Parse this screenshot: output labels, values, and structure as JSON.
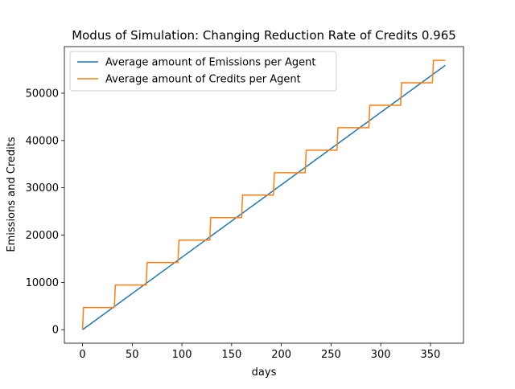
{
  "chart_data": {
    "type": "line",
    "title": "Modus of Simulation: Changing Reduction Rate of Credits 0.965",
    "xlabel": "days",
    "ylabel": "Emissions and Credits",
    "xlim": [
      -18.25,
      383.25
    ],
    "ylim": [
      -2850,
      59850
    ],
    "x_ticks": [
      0,
      50,
      100,
      150,
      200,
      250,
      300,
      350
    ],
    "y_ticks": [
      0,
      10000,
      20000,
      30000,
      40000,
      50000
    ],
    "grid": false,
    "legend_position": "top-left",
    "series": [
      {
        "name": "Average amount of Emissions per Agent",
        "color": "#1f77b4",
        "points": [
          [
            0,
            0
          ],
          [
            365,
            55900
          ]
        ]
      },
      {
        "name": "Average amount of Credits per Agent",
        "color": "#ff7f0e",
        "points": [
          [
            0,
            0
          ],
          [
            1,
            4700
          ],
          [
            32,
            4700
          ],
          [
            33,
            9450
          ],
          [
            64,
            9450
          ],
          [
            65,
            14200
          ],
          [
            96,
            14200
          ],
          [
            97,
            18950
          ],
          [
            128,
            18950
          ],
          [
            129,
            23700
          ],
          [
            160,
            23700
          ],
          [
            161,
            28450
          ],
          [
            192,
            28450
          ],
          [
            193,
            33200
          ],
          [
            224,
            33200
          ],
          [
            225,
            37950
          ],
          [
            256,
            37950
          ],
          [
            257,
            42700
          ],
          [
            288,
            42700
          ],
          [
            289,
            47450
          ],
          [
            320,
            47450
          ],
          [
            321,
            52200
          ],
          [
            352,
            52200
          ],
          [
            353,
            56950
          ],
          [
            365,
            56950
          ]
        ]
      }
    ]
  }
}
